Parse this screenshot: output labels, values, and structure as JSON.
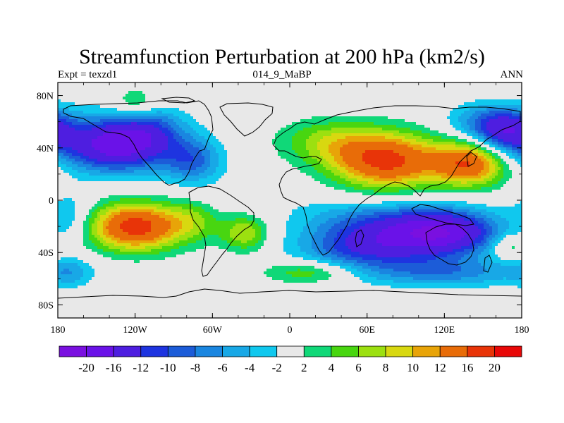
{
  "title": "Streamfunction Perturbation at 200 hPa (km2/s)",
  "left_label": "Expt = texzd1",
  "center_label": "014_9_MaBP",
  "right_label": "ANN",
  "chart_data": {
    "type": "heatmap",
    "projection": "cylindrical-equidistant",
    "xlim": [
      -180,
      180
    ],
    "ylim": [
      -90,
      90
    ],
    "x_ticks": [
      {
        "value": -180,
        "label": "180"
      },
      {
        "value": -120,
        "label": "120W"
      },
      {
        "value": -60,
        "label": "60W"
      },
      {
        "value": 0,
        "label": "0"
      },
      {
        "value": 60,
        "label": "60E"
      },
      {
        "value": 120,
        "label": "120E"
      },
      {
        "value": 180,
        "label": "180"
      }
    ],
    "y_ticks": [
      {
        "value": 80,
        "label": "80N"
      },
      {
        "value": 40,
        "label": "40N"
      },
      {
        "value": 0,
        "label": "0"
      },
      {
        "value": -40,
        "label": "40S"
      },
      {
        "value": -80,
        "label": "80S"
      }
    ],
    "levels": [
      -20,
      -16,
      -12,
      -10,
      -8,
      -6,
      -4,
      -2,
      2,
      4,
      6,
      8,
      10,
      12,
      16,
      20
    ],
    "colorbar_labels": [
      "-20",
      "-16",
      "-12",
      "-10",
      "-8",
      "-6",
      "-4",
      "-2",
      "2",
      "4",
      "6",
      "8",
      "10",
      "12",
      "16",
      "20"
    ],
    "colors": [
      "#7a10e0",
      "#6a12e8",
      "#4e1ee0",
      "#1e34e0",
      "#1c5cd8",
      "#1a86e0",
      "#18a8e6",
      "#10c8ee",
      "#e8e8e8",
      "#10d878",
      "#48d610",
      "#9ce010",
      "#d8d810",
      "#e8a408",
      "#e86c08",
      "#e83408",
      "#e80808"
    ],
    "features": [
      {
        "lon": -135,
        "lat": 42,
        "amp": -18,
        "slon": 30,
        "slat": 14
      },
      {
        "lon": -110,
        "lat": 55,
        "amp": -6,
        "slon": 20,
        "slat": 12
      },
      {
        "lon": -75,
        "lat": 30,
        "amp": -8,
        "slon": 16,
        "slat": 12
      },
      {
        "lon": -120,
        "lat": 74,
        "amp": 5,
        "slon": 12,
        "slat": 8
      },
      {
        "lon": 168,
        "lat": 52,
        "amp": -12,
        "slon": 18,
        "slat": 12
      },
      {
        "lon": 150,
        "lat": 60,
        "amp": -5,
        "slon": 22,
        "slat": 10
      },
      {
        "lon": -120,
        "lat": -20,
        "amp": 18,
        "slon": 25,
        "slat": 13
      },
      {
        "lon": -75,
        "lat": -15,
        "amp": 5,
        "slon": 15,
        "slat": 12
      },
      {
        "lon": -35,
        "lat": -25,
        "amp": 8,
        "slon": 13,
        "slat": 10
      },
      {
        "lon": -170,
        "lat": -12,
        "amp": -4,
        "slon": 12,
        "slat": 12
      },
      {
        "lon": -170,
        "lat": -55,
        "amp": -4,
        "slon": 12,
        "slat": 8
      },
      {
        "lon": 15,
        "lat": -55,
        "amp": 6,
        "slon": 25,
        "slat": 6
      },
      {
        "lon": 75,
        "lat": 30,
        "amp": 17,
        "slon": 30,
        "slat": 15
      },
      {
        "lon": 30,
        "lat": 45,
        "amp": 6,
        "slon": 28,
        "slat": 12
      },
      {
        "lon": 140,
        "lat": 28,
        "amp": 15,
        "slon": 20,
        "slat": 12
      },
      {
        "lon": 120,
        "lat": -25,
        "amp": -17,
        "slon": 30,
        "slat": 12
      },
      {
        "lon": 60,
        "lat": -35,
        "amp": -12,
        "slon": 35,
        "slat": 12
      },
      {
        "lon": 70,
        "lat": -15,
        "amp": -6,
        "slon": 40,
        "slat": 10
      },
      {
        "lon": 120,
        "lat": -55,
        "amp": -7,
        "slon": 45,
        "slat": 8
      },
      {
        "lon": 170,
        "lat": -35,
        "amp": 5,
        "slon": 10,
        "slat": 7
      },
      {
        "lon": -30,
        "lat": 0,
        "amp": -1,
        "slon": 80,
        "slat": 10
      }
    ]
  }
}
